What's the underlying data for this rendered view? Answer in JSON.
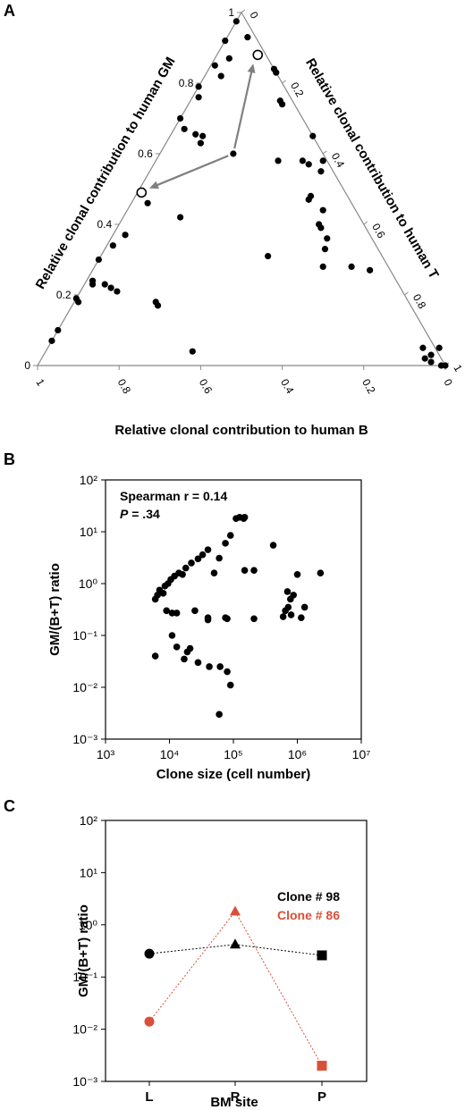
{
  "panels": {
    "a_label": "A",
    "b_label": "B",
    "c_label": "C"
  },
  "colors": {
    "black": "#000000",
    "clone86": "#d94f3a",
    "arrow": "#808080",
    "grid": "#888888"
  },
  "chart_data": [
    {
      "type": "scatter",
      "subtype": "ternary",
      "axes": {
        "b_label": "Relative clonal contribution to human B",
        "gm_label": "Relative clonal contribution to human GM",
        "t_label": "Relative clonal contribution to human T"
      },
      "gm_ticks": [
        "0",
        "0.2",
        "0.4",
        "0.6",
        "0.8",
        "1"
      ],
      "t_ticks": [
        "0",
        "0.2",
        "0.4",
        "0.6",
        "0.8",
        "1"
      ],
      "b_ticks": [
        "1",
        "0.8",
        "0.6",
        "0.4",
        "0.2",
        "0"
      ],
      "points_gm_t": [
        [
          0.975,
          0.0
        ],
        [
          0.93,
          0.05
        ],
        [
          0.92,
          0.0
        ],
        [
          0.87,
          0.035
        ],
        [
          0.85,
          0.01
        ],
        [
          0.82,
          0.04
        ],
        [
          0.79,
          0.0
        ],
        [
          0.76,
          0.015
        ],
        [
          0.7,
          0.0
        ],
        [
          0.67,
          0.025
        ],
        [
          0.655,
          0.06
        ],
        [
          0.65,
          0.08
        ],
        [
          0.63,
          0.085
        ],
        [
          0.6,
          0.18
        ],
        [
          0.58,
          0.3
        ],
        [
          0.46,
          0.04
        ],
        [
          0.42,
          0.14
        ],
        [
          0.37,
          0.03
        ],
        [
          0.34,
          0.015
        ],
        [
          0.3,
          0.0
        ],
        [
          0.24,
          0.015
        ],
        [
          0.23,
          0.02
        ],
        [
          0.23,
          0.05
        ],
        [
          0.22,
          0.07
        ],
        [
          0.21,
          0.09
        ],
        [
          0.19,
          0.0
        ],
        [
          0.18,
          0.01
        ],
        [
          0.18,
          0.2
        ],
        [
          0.17,
          0.21
        ],
        [
          0.1,
          0.0
        ],
        [
          0.07,
          0.0
        ],
        [
          0.04,
          0.36
        ],
        [
          0.84,
          0.16
        ],
        [
          0.83,
          0.17
        ],
        [
          0.75,
          0.22
        ],
        [
          0.74,
          0.23
        ],
        [
          0.65,
          0.35
        ],
        [
          0.58,
          0.36
        ],
        [
          0.57,
          0.38
        ],
        [
          0.58,
          0.41
        ],
        [
          0.55,
          0.42
        ],
        [
          0.48,
          0.43
        ],
        [
          0.47,
          0.43
        ],
        [
          0.44,
          0.48
        ],
        [
          0.4,
          0.49
        ],
        [
          0.39,
          0.5
        ],
        [
          0.36,
          0.53
        ],
        [
          0.33,
          0.54
        ],
        [
          0.28,
          0.56
        ],
        [
          0.31,
          0.41
        ],
        [
          0.28,
          0.63
        ],
        [
          0.27,
          0.68
        ],
        [
          0.05,
          0.92
        ],
        [
          0.02,
          0.94
        ],
        [
          0.01,
          0.96
        ],
        [
          0.0,
          0.99
        ],
        [
          0.0,
          1.0
        ],
        [
          0.05,
          0.96
        ],
        [
          0.03,
          0.95
        ]
      ],
      "open_points_gm_t": [
        [
          0.88,
          0.1
        ],
        [
          0.49,
          0.01
        ]
      ],
      "arrows": [
        {
          "from": [
            0.6,
            0.18
          ],
          "to": [
            0.86,
            0.1
          ]
        },
        {
          "from": [
            0.6,
            0.18
          ],
          "to": [
            0.5,
            0.02
          ]
        }
      ]
    },
    {
      "type": "scatter",
      "xscale": "log",
      "yscale": "log",
      "xlabel": "Clone size (cell number)",
      "ylabel": "GM/(B+T) ratio",
      "xlim": [
        1000,
        10000000
      ],
      "ylim": [
        0.001,
        100
      ],
      "xticks": [
        "10³",
        "10⁴",
        "10⁵",
        "10⁶",
        "10⁷"
      ],
      "yticks": [
        "10²",
        "10¹",
        "10⁰",
        "10⁻¹",
        "10⁻²",
        "10⁻³"
      ],
      "annotation_line1": "Spearman r = 0.14",
      "annotation_p_italic": "P",
      "annotation_p_rest": " = .34",
      "points": [
        [
          6000,
          0.5
        ],
        [
          6500,
          0.6
        ],
        [
          7000,
          0.75
        ],
        [
          8000,
          0.65
        ],
        [
          8500,
          0.9
        ],
        [
          9500,
          1.0
        ],
        [
          10500,
          1.2
        ],
        [
          12000,
          1.4
        ],
        [
          14000,
          1.6
        ],
        [
          16000,
          1.5
        ],
        [
          18000,
          2.0
        ],
        [
          22000,
          2.5
        ],
        [
          28000,
          3.0
        ],
        [
          33000,
          3.6
        ],
        [
          40000,
          4.5
        ],
        [
          50000,
          1.6
        ],
        [
          60000,
          3.1
        ],
        [
          75000,
          6.0
        ],
        [
          90000,
          8.5
        ],
        [
          110000,
          18
        ],
        [
          125000,
          19
        ],
        [
          145000,
          18
        ],
        [
          150000,
          19
        ],
        [
          9000,
          0.3
        ],
        [
          11000,
          0.27
        ],
        [
          13000,
          0.27
        ],
        [
          25000,
          0.3
        ],
        [
          40000,
          0.22
        ],
        [
          75000,
          0.22
        ],
        [
          11000,
          0.1
        ],
        [
          13000,
          0.06
        ],
        [
          17000,
          0.035
        ],
        [
          19000,
          0.048
        ],
        [
          21000,
          0.056
        ],
        [
          28000,
          0.03
        ],
        [
          42000,
          0.025
        ],
        [
          62000,
          0.025
        ],
        [
          80000,
          0.02
        ],
        [
          90000,
          0.011
        ],
        [
          60000,
          0.003
        ],
        [
          6000,
          0.04
        ],
        [
          40000,
          0.2
        ],
        [
          80000,
          0.21
        ],
        [
          150000,
          1.8
        ],
        [
          210000,
          1.8
        ],
        [
          210000,
          0.21
        ],
        [
          420000,
          5.5
        ],
        [
          600000,
          0.23
        ],
        [
          650000,
          0.3
        ],
        [
          720000,
          0.35
        ],
        [
          800000,
          0.25
        ],
        [
          870000,
          0.6
        ],
        [
          1000000,
          1.5
        ],
        [
          1150000,
          0.22
        ],
        [
          1300000,
          0.35
        ],
        [
          2300000,
          1.6
        ],
        [
          700000,
          0.7
        ],
        [
          780000,
          0.5
        ]
      ]
    },
    {
      "type": "line",
      "yscale": "log",
      "xlabel": "BM site",
      "ylabel": "GM/(B+T) ratio",
      "categories": [
        "L",
        "R",
        "P"
      ],
      "ylim": [
        0.001,
        100
      ],
      "yticks": [
        "10²",
        "10¹",
        "10⁰",
        "10⁻¹",
        "10⁻²",
        "10⁻³"
      ],
      "series": [
        {
          "name": "Clone # 98",
          "values": [
            0.28,
            0.42,
            0.26
          ],
          "markers": [
            "circle",
            "triangle",
            "square"
          ]
        },
        {
          "name": "Clone # 86",
          "values": [
            0.014,
            1.8,
            0.002
          ],
          "markers": [
            "circle",
            "triangle",
            "square"
          ]
        }
      ]
    }
  ]
}
